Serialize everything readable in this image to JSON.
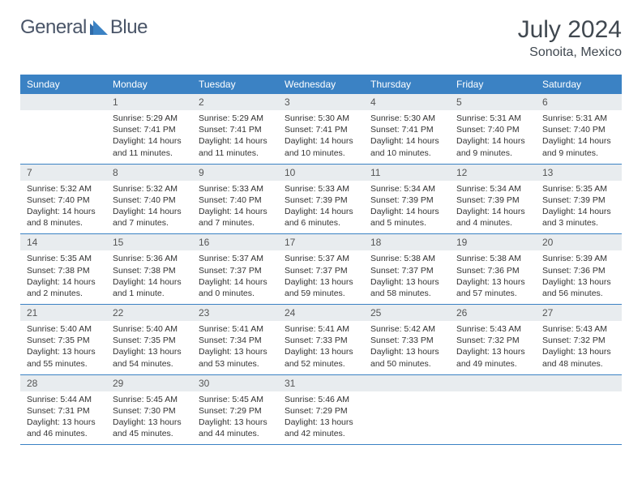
{
  "brand": {
    "part1": "General",
    "part2": "Blue"
  },
  "header": {
    "title": "July 2024",
    "location": "Sonoita, Mexico"
  },
  "theme": {
    "header_bg": "#3b82c4",
    "header_fg": "#ffffff",
    "daynum_bg": "#e8ecef",
    "border_color": "#3b82c4",
    "text_color": "#333333",
    "brand_text_color": "#4a5568",
    "title_color": "#404850",
    "title_fontsize": 30,
    "location_fontsize": 16,
    "logo_fontsize": 24,
    "th_fontsize": 12,
    "daynum_fontsize": 12,
    "cell_fontsize": 10.5
  },
  "dow": [
    "Sunday",
    "Monday",
    "Tuesday",
    "Wednesday",
    "Thursday",
    "Friday",
    "Saturday"
  ],
  "weeks": [
    [
      null,
      {
        "n": "1",
        "sr": "Sunrise: 5:29 AM",
        "ss": "Sunset: 7:41 PM",
        "dl": "Daylight: 14 hours and 11 minutes."
      },
      {
        "n": "2",
        "sr": "Sunrise: 5:29 AM",
        "ss": "Sunset: 7:41 PM",
        "dl": "Daylight: 14 hours and 11 minutes."
      },
      {
        "n": "3",
        "sr": "Sunrise: 5:30 AM",
        "ss": "Sunset: 7:41 PM",
        "dl": "Daylight: 14 hours and 10 minutes."
      },
      {
        "n": "4",
        "sr": "Sunrise: 5:30 AM",
        "ss": "Sunset: 7:41 PM",
        "dl": "Daylight: 14 hours and 10 minutes."
      },
      {
        "n": "5",
        "sr": "Sunrise: 5:31 AM",
        "ss": "Sunset: 7:40 PM",
        "dl": "Daylight: 14 hours and 9 minutes."
      },
      {
        "n": "6",
        "sr": "Sunrise: 5:31 AM",
        "ss": "Sunset: 7:40 PM",
        "dl": "Daylight: 14 hours and 9 minutes."
      }
    ],
    [
      {
        "n": "7",
        "sr": "Sunrise: 5:32 AM",
        "ss": "Sunset: 7:40 PM",
        "dl": "Daylight: 14 hours and 8 minutes."
      },
      {
        "n": "8",
        "sr": "Sunrise: 5:32 AM",
        "ss": "Sunset: 7:40 PM",
        "dl": "Daylight: 14 hours and 7 minutes."
      },
      {
        "n": "9",
        "sr": "Sunrise: 5:33 AM",
        "ss": "Sunset: 7:40 PM",
        "dl": "Daylight: 14 hours and 7 minutes."
      },
      {
        "n": "10",
        "sr": "Sunrise: 5:33 AM",
        "ss": "Sunset: 7:39 PM",
        "dl": "Daylight: 14 hours and 6 minutes."
      },
      {
        "n": "11",
        "sr": "Sunrise: 5:34 AM",
        "ss": "Sunset: 7:39 PM",
        "dl": "Daylight: 14 hours and 5 minutes."
      },
      {
        "n": "12",
        "sr": "Sunrise: 5:34 AM",
        "ss": "Sunset: 7:39 PM",
        "dl": "Daylight: 14 hours and 4 minutes."
      },
      {
        "n": "13",
        "sr": "Sunrise: 5:35 AM",
        "ss": "Sunset: 7:39 PM",
        "dl": "Daylight: 14 hours and 3 minutes."
      }
    ],
    [
      {
        "n": "14",
        "sr": "Sunrise: 5:35 AM",
        "ss": "Sunset: 7:38 PM",
        "dl": "Daylight: 14 hours and 2 minutes."
      },
      {
        "n": "15",
        "sr": "Sunrise: 5:36 AM",
        "ss": "Sunset: 7:38 PM",
        "dl": "Daylight: 14 hours and 1 minute."
      },
      {
        "n": "16",
        "sr": "Sunrise: 5:37 AM",
        "ss": "Sunset: 7:37 PM",
        "dl": "Daylight: 14 hours and 0 minutes."
      },
      {
        "n": "17",
        "sr": "Sunrise: 5:37 AM",
        "ss": "Sunset: 7:37 PM",
        "dl": "Daylight: 13 hours and 59 minutes."
      },
      {
        "n": "18",
        "sr": "Sunrise: 5:38 AM",
        "ss": "Sunset: 7:37 PM",
        "dl": "Daylight: 13 hours and 58 minutes."
      },
      {
        "n": "19",
        "sr": "Sunrise: 5:38 AM",
        "ss": "Sunset: 7:36 PM",
        "dl": "Daylight: 13 hours and 57 minutes."
      },
      {
        "n": "20",
        "sr": "Sunrise: 5:39 AM",
        "ss": "Sunset: 7:36 PM",
        "dl": "Daylight: 13 hours and 56 minutes."
      }
    ],
    [
      {
        "n": "21",
        "sr": "Sunrise: 5:40 AM",
        "ss": "Sunset: 7:35 PM",
        "dl": "Daylight: 13 hours and 55 minutes."
      },
      {
        "n": "22",
        "sr": "Sunrise: 5:40 AM",
        "ss": "Sunset: 7:35 PM",
        "dl": "Daylight: 13 hours and 54 minutes."
      },
      {
        "n": "23",
        "sr": "Sunrise: 5:41 AM",
        "ss": "Sunset: 7:34 PM",
        "dl": "Daylight: 13 hours and 53 minutes."
      },
      {
        "n": "24",
        "sr": "Sunrise: 5:41 AM",
        "ss": "Sunset: 7:33 PM",
        "dl": "Daylight: 13 hours and 52 minutes."
      },
      {
        "n": "25",
        "sr": "Sunrise: 5:42 AM",
        "ss": "Sunset: 7:33 PM",
        "dl": "Daylight: 13 hours and 50 minutes."
      },
      {
        "n": "26",
        "sr": "Sunrise: 5:43 AM",
        "ss": "Sunset: 7:32 PM",
        "dl": "Daylight: 13 hours and 49 minutes."
      },
      {
        "n": "27",
        "sr": "Sunrise: 5:43 AM",
        "ss": "Sunset: 7:32 PM",
        "dl": "Daylight: 13 hours and 48 minutes."
      }
    ],
    [
      {
        "n": "28",
        "sr": "Sunrise: 5:44 AM",
        "ss": "Sunset: 7:31 PM",
        "dl": "Daylight: 13 hours and 46 minutes."
      },
      {
        "n": "29",
        "sr": "Sunrise: 5:45 AM",
        "ss": "Sunset: 7:30 PM",
        "dl": "Daylight: 13 hours and 45 minutes."
      },
      {
        "n": "30",
        "sr": "Sunrise: 5:45 AM",
        "ss": "Sunset: 7:29 PM",
        "dl": "Daylight: 13 hours and 44 minutes."
      },
      {
        "n": "31",
        "sr": "Sunrise: 5:46 AM",
        "ss": "Sunset: 7:29 PM",
        "dl": "Daylight: 13 hours and 42 minutes."
      },
      null,
      null,
      null
    ]
  ]
}
